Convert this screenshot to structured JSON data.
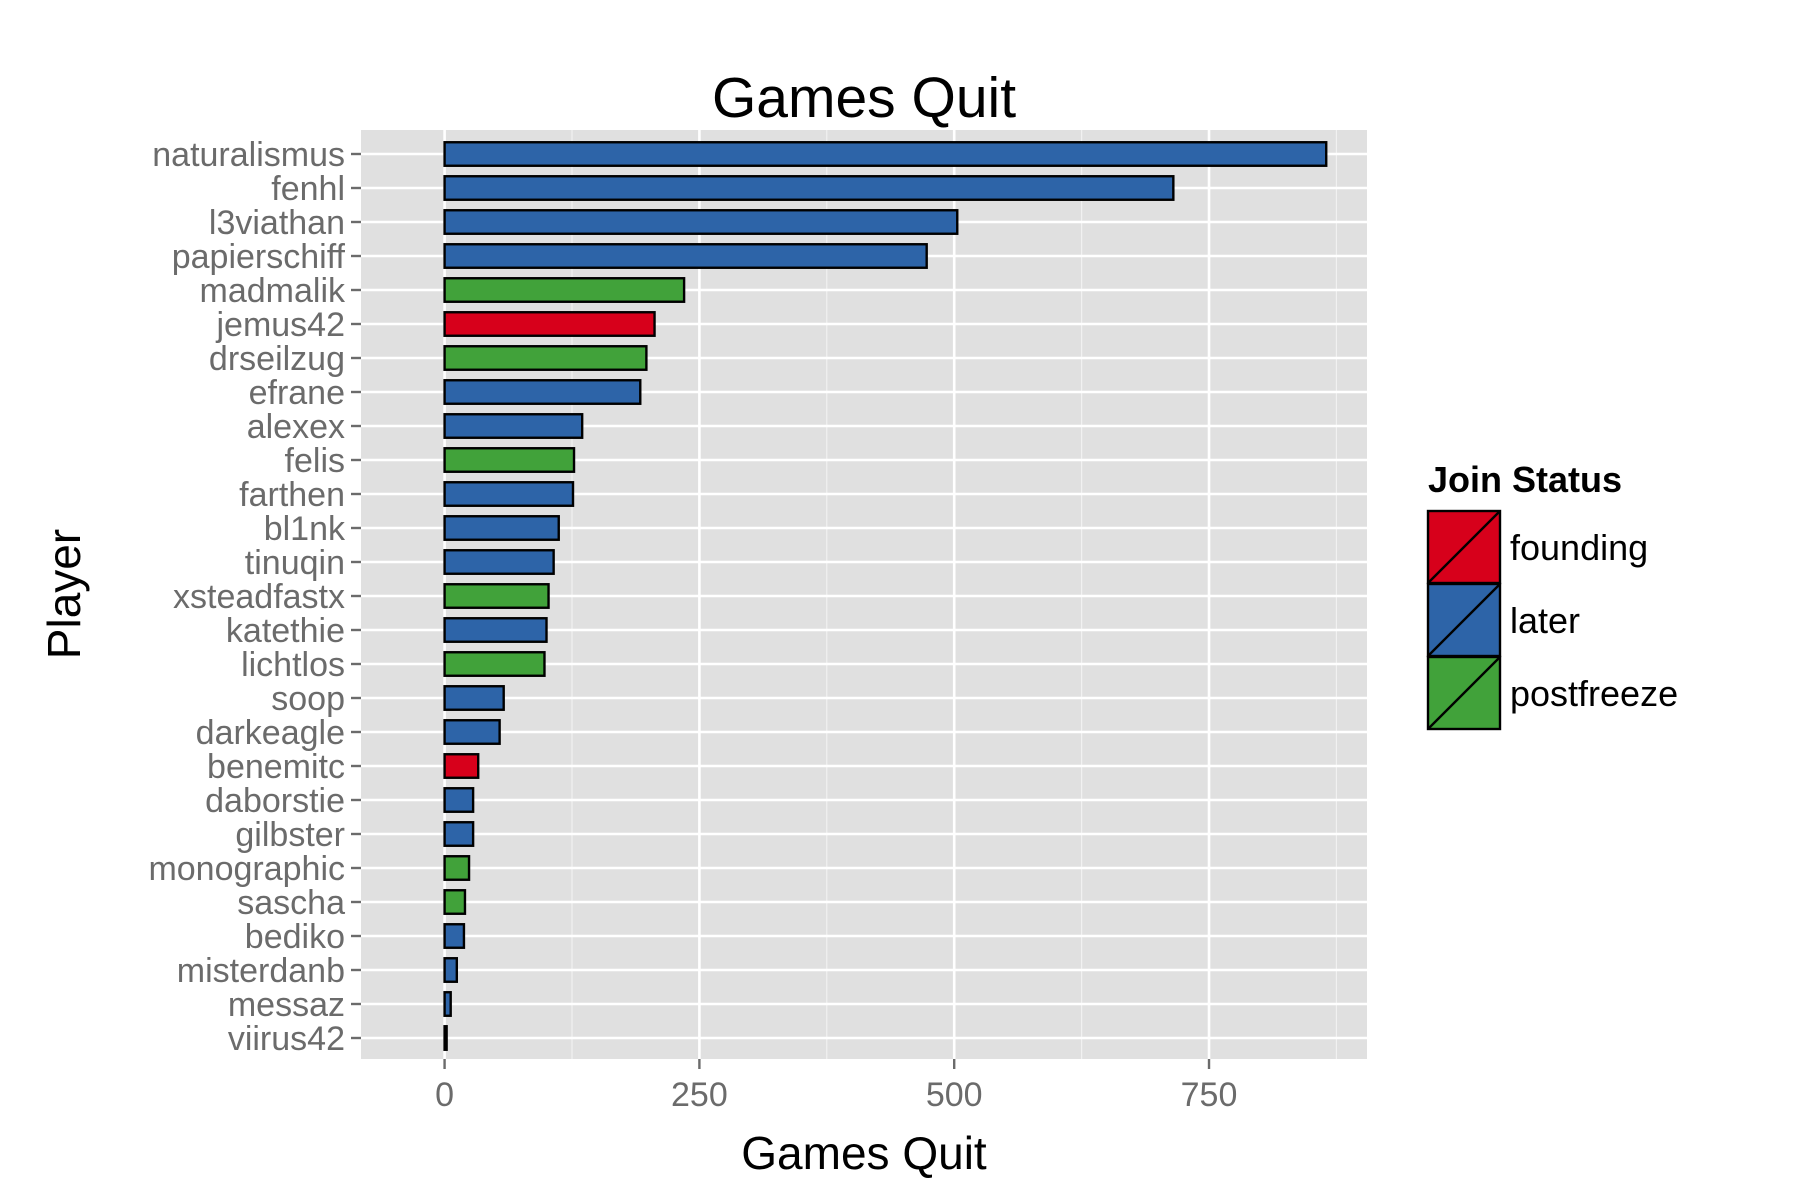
{
  "chart_data": {
    "type": "bar",
    "orientation": "horizontal",
    "title": "Games Quit",
    "xlabel": "Games Quit",
    "ylabel": "Player",
    "xlim": [
      -82,
      905
    ],
    "x_ticks": [
      0,
      250,
      500,
      750
    ],
    "x_tick_labels": [
      "0",
      "250",
      "500",
      "750"
    ],
    "grid": true,
    "legend": {
      "title": "Join Status",
      "placement": "right",
      "entries": [
        {
          "label": "founding",
          "color": "#d7001b"
        },
        {
          "label": "later",
          "color": "#2d64a8"
        },
        {
          "label": "postfreeze",
          "color": "#41a23a"
        }
      ]
    },
    "categories": [
      "naturalismus",
      "fenhl",
      "l3viathan",
      "papierschiff",
      "madmalik",
      "jemus42",
      "drseilzug",
      "efrane",
      "alexex",
      "felis",
      "farthen",
      "bl1nk",
      "tinuqin",
      "xsteadfastx",
      "katethie",
      "lichtlos",
      "soop",
      "darkeagle",
      "benemitc",
      "daborstie",
      "gilbster",
      "monographic",
      "sascha",
      "bediko",
      "misterdanb",
      "messaz",
      "viirus42"
    ],
    "values": [
      865,
      715,
      503,
      473,
      235,
      206,
      198,
      192,
      135,
      127,
      126,
      112,
      107,
      102,
      100,
      98,
      58,
      54,
      33,
      28,
      28,
      24,
      20,
      19,
      12,
      6,
      2
    ],
    "groups": [
      "later",
      "later",
      "later",
      "later",
      "postfreeze",
      "founding",
      "postfreeze",
      "later",
      "later",
      "postfreeze",
      "later",
      "later",
      "later",
      "postfreeze",
      "later",
      "postfreeze",
      "later",
      "later",
      "founding",
      "later",
      "later",
      "postfreeze",
      "postfreeze",
      "later",
      "later",
      "later",
      "later"
    ]
  },
  "colors": {
    "panel_background": "#e0e0e0",
    "grid_line": "#ffffff",
    "bar_outline": "#000000"
  }
}
